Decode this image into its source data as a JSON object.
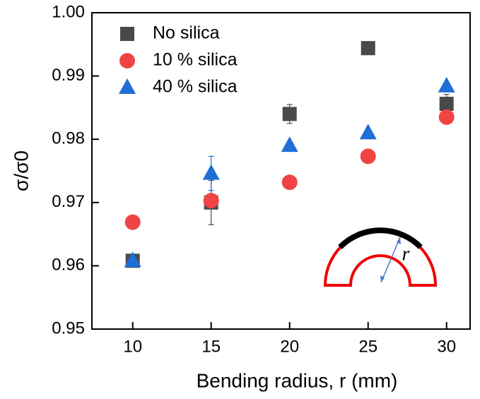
{
  "chart_data": {
    "type": "scatter",
    "xlabel": "Bending radius, r (mm)",
    "ylabel": "σ/σ0",
    "annotations": [
      "r"
    ],
    "xlim": [
      7.4,
      31.5
    ],
    "xticks": [
      10,
      15,
      20,
      25,
      30
    ],
    "ylim": [
      0.95,
      1.0
    ],
    "yticks": [
      0.95,
      0.96,
      0.97,
      0.98,
      0.99,
      {
        "value": 1.0,
        "label": "1.00"
      }
    ],
    "legend": "upper left",
    "series": [
      {
        "name": "No silica",
        "color": "#494949",
        "marker": "square",
        "x": [
          10,
          15,
          20,
          25,
          30
        ],
        "values": [
          0.9608,
          0.97,
          0.984,
          0.9944,
          0.9856
        ],
        "errors": [
          0.0003,
          0.0035,
          0.0015,
          0.0003,
          0.0015
        ]
      },
      {
        "name": "10 % silica",
        "color": "#f04444",
        "marker": "circle",
        "x": [
          10,
          15,
          20,
          25,
          30
        ],
        "values": [
          0.9669,
          0.9703,
          0.9732,
          0.9773,
          0.9835
        ]
      },
      {
        "name": "40 % silica",
        "color": "#1f6fd6",
        "marker": "triangle",
        "x": [
          10,
          15,
          20,
          25,
          30
        ],
        "values": [
          0.9608,
          0.9746,
          0.979,
          0.981,
          0.9884
        ],
        "errors": [
          0.0003,
          0.0027,
          0.0005,
          0.0005,
          0.0005
        ]
      }
    ]
  }
}
